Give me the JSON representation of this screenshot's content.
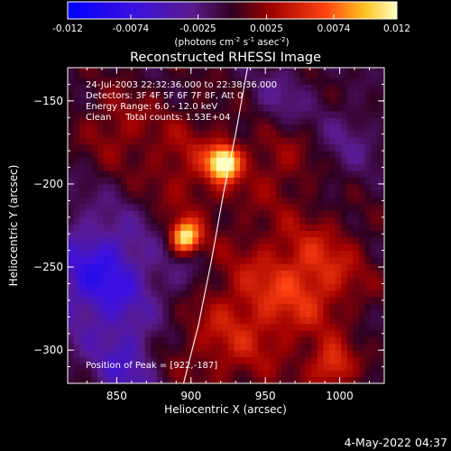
{
  "chart_data": {
    "type": "heatmap",
    "title": "Reconstructed RHESSI Image",
    "xlabel": "Heliocentric X (arcsec)",
    "ylabel": "Heliocentric Y (arcsec)",
    "xlim": [
      817,
      1030
    ],
    "ylim": [
      -320,
      -130
    ],
    "xticks": [
      850,
      900,
      950,
      1000
    ],
    "yticks": [
      -150,
      -200,
      -250,
      -300
    ],
    "colorbar": {
      "min": -0.012,
      "max": 0.012,
      "tick_labels": [
        "-0.012",
        "-0.0074",
        "-0.0025",
        "0.0025",
        "0.0074",
        "0.012"
      ],
      "tick_values": [
        -0.012,
        -0.0074,
        -0.0025,
        0.0025,
        0.0074,
        0.012
      ],
      "units_prefix": "(photons cm",
      "units_exp1": "-2",
      "units_mid": " s",
      "units_exp2": "-1",
      "units_mid2": " asec",
      "units_exp3": "-2",
      "units_suffix": ")"
    },
    "annotations": [
      "24-Jul-2003 22:32:36.000 to 22:38:36.000",
      "Detectors: 3F 4F 5F 6F 7F 8F, Att 0",
      "Energy Range: 6.0 - 12.0 keV",
      "Clean     Total counts: 1.53E+04"
    ],
    "peak_text": "Position of Peak = [922,-187]",
    "sources": [
      {
        "x": 922,
        "y": -187,
        "value": 0.012
      },
      {
        "x": 896,
        "y": -232,
        "value": 0.011
      }
    ],
    "limb": [
      [
        895,
        -320
      ],
      [
        905,
        -285
      ],
      [
        914,
        -245
      ],
      [
        922,
        -205
      ],
      [
        930,
        -170
      ],
      [
        938,
        -130
      ]
    ]
  },
  "footer_date": "4-May-2022 04:37"
}
